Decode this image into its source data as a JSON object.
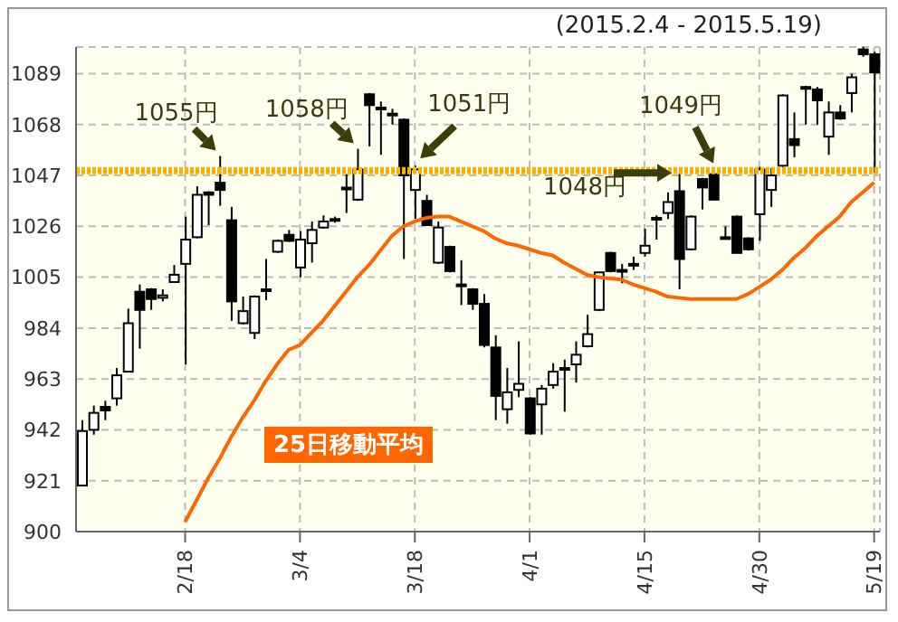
{
  "chart_data": {
    "type": "candlestick",
    "subtitle": "(2015.2.4 - 2015.5.19)",
    "categories": [
      null,
      null,
      null,
      null,
      null,
      null,
      null,
      null,
      null,
      "2/18",
      null,
      null,
      null,
      null,
      null,
      null,
      null,
      null,
      null,
      "3/4",
      null,
      null,
      null,
      null,
      null,
      null,
      null,
      null,
      null,
      "3/18",
      null,
      null,
      null,
      null,
      null,
      null,
      null,
      null,
      null,
      "4/1",
      null,
      null,
      null,
      null,
      null,
      null,
      null,
      null,
      null,
      "4/15",
      null,
      null,
      null,
      null,
      null,
      null,
      null,
      null,
      null,
      "4/30",
      null,
      null,
      null,
      null,
      null,
      null,
      null,
      null,
      null,
      "5/19"
    ],
    "ohlc": [
      [
        919,
        946,
        919,
        941.5
      ],
      [
        942,
        952,
        940,
        949
      ],
      [
        951.5,
        954,
        946,
        950
      ],
      [
        955,
        967.5,
        952,
        964.5
      ],
      [
        966,
        992,
        966,
        986
      ],
      [
        999,
        1002,
        975.5,
        991.5
      ],
      [
        1000,
        1000.5,
        991.5,
        996
      ],
      [
        996.5,
        1000,
        995,
        997.5
      ],
      [
        1003,
        1010,
        1003,
        1006
      ],
      [
        1010.5,
        1030,
        969,
        1020.5
      ],
      [
        1021.5,
        1042.5,
        1021,
        1039
      ],
      [
        1040,
        1040.5,
        1026.5,
        1039
      ],
      [
        1044,
        1055,
        1034.5,
        1041
      ],
      [
        1028.5,
        1034,
        987,
        995
      ],
      [
        986,
        997,
        985.5,
        991
      ],
      [
        982,
        997.5,
        979.5,
        997
      ],
      [
        999.5,
        1012.5,
        995.5,
        1000
      ],
      [
        1015.5,
        1020.5,
        1015,
        1020
      ],
      [
        1022.5,
        1024.5,
        1019.5,
        1020
      ],
      [
        1009,
        1024,
        1005,
        1020.5
      ],
      [
        1019,
        1028,
        1011,
        1024.5
      ],
      [
        1025.5,
        1030.5,
        1025,
        1028
      ],
      [
        1028.5,
        1030,
        1027.5,
        1029
      ],
      [
        1041.5,
        1047.5,
        1031.5,
        1042
      ],
      [
        1037,
        1058,
        1036.5,
        1049.5
      ],
      [
        1080.5,
        1081,
        1059,
        1076
      ],
      [
        1075,
        1077.5,
        1055.5,
        1074.5
      ],
      [
        1072.5,
        1074.5,
        1068,
        1072
      ],
      [
        1070,
        1070.5,
        1012.5,
        1047
      ],
      [
        1041,
        1051,
        1029,
        1049.5
      ],
      [
        1036.5,
        1039,
        1026.5,
        1026.5
      ],
      [
        1011,
        1028,
        1010.5,
        1025.5
      ],
      [
        1017.5,
        1018,
        1007,
        1007.5
      ],
      [
        1002,
        1012,
        993.5,
        1002
      ],
      [
        1000,
        1000.5,
        991.5,
        994
      ],
      [
        994,
        998,
        976,
        977
      ],
      [
        976,
        981,
        946,
        956
      ],
      [
        950.5,
        967.5,
        944.5,
        957.5
      ],
      [
        958.5,
        978.5,
        955.5,
        961
      ],
      [
        955,
        955.5,
        940,
        940.5
      ],
      [
        952.5,
        960.5,
        940,
        959
      ],
      [
        960.5,
        969.5,
        959,
        966
      ],
      [
        967,
        971,
        949.5,
        967.5
      ],
      [
        969,
        978.5,
        961.5,
        973
      ],
      [
        976.5,
        989.5,
        976,
        981.5
      ],
      [
        991.5,
        1007,
        991,
        1007
      ],
      [
        1015,
        1015.5,
        1007,
        1007.5
      ],
      [
        1008,
        1010.5,
        1002.5,
        1008
      ],
      [
        1010.5,
        1013.5,
        1008,
        1010
      ],
      [
        1015,
        1025,
        1013.5,
        1018
      ],
      [
        1029,
        1030.5,
        1020.5,
        1029.5
      ],
      [
        1031.5,
        1040,
        1029,
        1036
      ],
      [
        1040.5,
        1048,
        1000,
        1012.5
      ],
      [
        1016.5,
        1030.5,
        1016,
        1030
      ],
      [
        1045.5,
        1046,
        1033,
        1042
      ],
      [
        1047.5,
        1049,
        1037,
        1037
      ],
      [
        1021.5,
        1026,
        1021,
        1021
      ],
      [
        1030,
        1030.5,
        1015,
        1015
      ],
      [
        1021,
        1021.5,
        1016,
        1016.5
      ],
      [
        1031,
        1050.5,
        1020,
        1049.5
      ],
      [
        1041,
        1050,
        1034,
        1047
      ],
      [
        1051,
        1080.5,
        1050.5,
        1080
      ],
      [
        1062,
        1073,
        1054.5,
        1059.5
      ],
      [
        1083.5,
        1084,
        1068,
        1083
      ],
      [
        1082.5,
        1083.5,
        1068,
        1078
      ],
      [
        1063,
        1077.5,
        1055.5,
        1073
      ],
      [
        1073,
        1076,
        1070,
        1070.5
      ],
      [
        1081,
        1089,
        1073,
        1087.5
      ],
      [
        1099,
        1100,
        1096,
        1097
      ],
      [
        1097,
        1098,
        1048,
        1089.5
      ]
    ],
    "series": [
      {
        "type": "line",
        "name": "25日移動平均",
        "color": "#ff6600",
        "values": [
          null,
          null,
          null,
          null,
          null,
          null,
          null,
          null,
          null,
          904,
          913,
          922,
          930,
          939,
          947,
          954,
          962,
          969,
          975,
          977,
          982,
          987,
          993,
          999,
          1005,
          1010,
          1016,
          1022,
          1026,
          1028,
          1029.5,
          1030,
          1030,
          1028,
          1026,
          1024,
          1021,
          1019,
          1018,
          1016.5,
          1015,
          1014,
          1011,
          1008.5,
          1006,
          1005,
          1004.5,
          1004,
          1002,
          1000.5,
          999,
          997,
          996.5,
          996,
          996,
          996,
          996,
          996,
          998,
          1001,
          1004,
          1008,
          1013,
          1017,
          1022,
          1026,
          1030,
          1036,
          1040,
          1044
        ]
      }
    ],
    "ylim": [
      900,
      1100
    ],
    "yticks": [
      900,
      921,
      942,
      963,
      984,
      1005,
      1026,
      1047,
      1068,
      1089
    ],
    "grid": true,
    "ref_lines": [
      {
        "axis": "y",
        "value": 1049,
        "color": "#ffb000",
        "line_style": "dotted"
      }
    ],
    "annotations": [
      "1055円",
      "1058円",
      "1051円",
      "1048円",
      "1049円"
    ]
  }
}
